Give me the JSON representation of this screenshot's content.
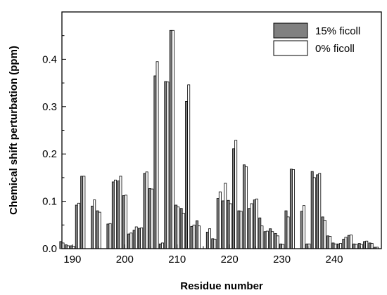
{
  "chart_data": {
    "type": "bar",
    "xlabel": "Residue number",
    "ylabel": "Chemical shift perturbation (ppm)",
    "xlim": [
      188,
      249
    ],
    "ylim": [
      0,
      0.5
    ],
    "x_ticks": [
      190,
      200,
      210,
      220,
      230,
      240
    ],
    "x_tick_labels": [
      "190",
      "200",
      "210",
      "220",
      "230",
      "240"
    ],
    "y_ticks": [
      0.0,
      0.1,
      0.2,
      0.3,
      0.4
    ],
    "y_tick_labels": [
      "0.0",
      "0.1",
      "0.2",
      "0.3",
      "0.4"
    ],
    "grid": false,
    "legend_position": "top-right",
    "series": [
      {
        "name": "15% ficoll",
        "color": "#808080",
        "points": [
          [
            188,
            0.015
          ],
          [
            189,
            0.008
          ],
          [
            190,
            0.006
          ],
          [
            191,
            0.092
          ],
          [
            192,
            0.153
          ],
          [
            194,
            0.09
          ],
          [
            195,
            0.08
          ],
          [
            197,
            0.052
          ],
          [
            198,
            0.141
          ],
          [
            199,
            0.143
          ],
          [
            200,
            0.112
          ],
          [
            201,
            0.031
          ],
          [
            202,
            0.039
          ],
          [
            203,
            0.043
          ],
          [
            204,
            0.159
          ],
          [
            205,
            0.127
          ],
          [
            206,
            0.365
          ],
          [
            207,
            0.01
          ],
          [
            208,
            0.353
          ],
          [
            209,
            0.461
          ],
          [
            210,
            0.092
          ],
          [
            211,
            0.085
          ],
          [
            212,
            0.311
          ],
          [
            213,
            0.047
          ],
          [
            214,
            0.059
          ],
          [
            216,
            0.035
          ],
          [
            217,
            0.021
          ],
          [
            218,
            0.106
          ],
          [
            219,
            0.101
          ],
          [
            220,
            0.102
          ],
          [
            221,
            0.211
          ],
          [
            222,
            0.08
          ],
          [
            223,
            0.177
          ],
          [
            224,
            0.085
          ],
          [
            225,
            0.103
          ],
          [
            226,
            0.065
          ],
          [
            227,
            0.036
          ],
          [
            228,
            0.042
          ],
          [
            229,
            0.032
          ],
          [
            230,
            0.01
          ],
          [
            231,
            0.08
          ],
          [
            232,
            0.168
          ],
          [
            234,
            0.079
          ],
          [
            235,
            0.01
          ],
          [
            236,
            0.163
          ],
          [
            237,
            0.156
          ],
          [
            238,
            0.067
          ],
          [
            239,
            0.027
          ],
          [
            240,
            0.012
          ],
          [
            241,
            0.01
          ],
          [
            242,
            0.02
          ],
          [
            243,
            0.028
          ],
          [
            244,
            0.01
          ],
          [
            245,
            0.011
          ],
          [
            246,
            0.015
          ],
          [
            247,
            0.012
          ],
          [
            248,
            0.003
          ]
        ]
      },
      {
        "name": "0% ficoll",
        "color": "#ffffff",
        "points": [
          [
            188,
            0.012
          ],
          [
            189,
            0.006
          ],
          [
            190,
            0.005
          ],
          [
            191,
            0.096
          ],
          [
            192,
            0.153
          ],
          [
            194,
            0.103
          ],
          [
            195,
            0.077
          ],
          [
            197,
            0.053
          ],
          [
            198,
            0.145
          ],
          [
            199,
            0.153
          ],
          [
            200,
            0.113
          ],
          [
            201,
            0.033
          ],
          [
            202,
            0.046
          ],
          [
            203,
            0.044
          ],
          [
            204,
            0.162
          ],
          [
            205,
            0.126
          ],
          [
            206,
            0.395
          ],
          [
            207,
            0.012
          ],
          [
            208,
            0.352
          ],
          [
            209,
            0.461
          ],
          [
            210,
            0.088
          ],
          [
            211,
            0.075
          ],
          [
            212,
            0.346
          ],
          [
            213,
            0.05
          ],
          [
            214,
            0.048
          ],
          [
            216,
            0.042
          ],
          [
            217,
            0.02
          ],
          [
            218,
            0.12
          ],
          [
            219,
            0.138
          ],
          [
            220,
            0.095
          ],
          [
            221,
            0.229
          ],
          [
            222,
            0.079
          ],
          [
            223,
            0.173
          ],
          [
            224,
            0.095
          ],
          [
            225,
            0.105
          ],
          [
            226,
            0.048
          ],
          [
            227,
            0.037
          ],
          [
            228,
            0.036
          ],
          [
            229,
            0.027
          ],
          [
            230,
            0.009
          ],
          [
            231,
            0.067
          ],
          [
            232,
            0.167
          ],
          [
            234,
            0.091
          ],
          [
            235,
            0.01
          ],
          [
            236,
            0.15
          ],
          [
            237,
            0.159
          ],
          [
            238,
            0.06
          ],
          [
            239,
            0.026
          ],
          [
            240,
            0.01
          ],
          [
            241,
            0.011
          ],
          [
            242,
            0.024
          ],
          [
            243,
            0.029
          ],
          [
            244,
            0.009
          ],
          [
            245,
            0.009
          ],
          [
            246,
            0.016
          ],
          [
            247,
            0.011
          ],
          [
            248,
            0.003
          ]
        ]
      }
    ]
  }
}
